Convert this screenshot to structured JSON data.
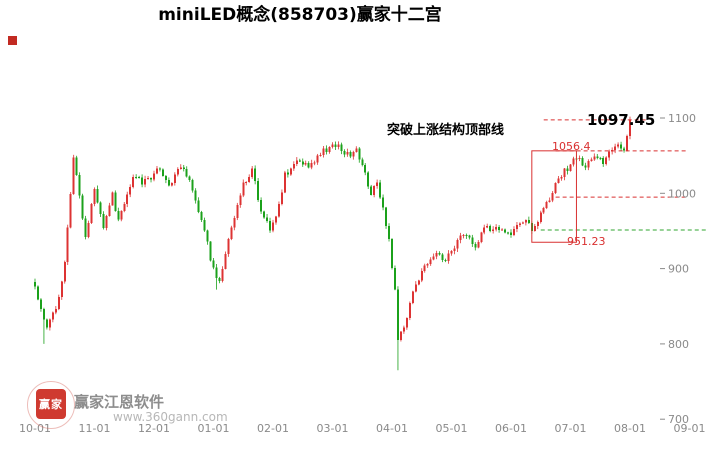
{
  "labels": {
    "breakout": "突破上涨结构顶部线",
    "latest_price": "1097.45",
    "upper_line": "1056.4",
    "lower_line": "951.23"
  },
  "watermark": {
    "logo_text": "赢家",
    "name": "赢家江恩软件",
    "url": "www.360gann.com"
  },
  "chart_data": {
    "type": "candlestick",
    "title": "miniLED概念(858703)赢家十二宫",
    "x_labels": [
      "10-01",
      "11-01",
      "12-01",
      "01-01",
      "02-01",
      "03-01",
      "04-01",
      "05-01",
      "06-01",
      "07-01",
      "08-01",
      "09-01"
    ],
    "y_ticks": [
      1100,
      1000,
      900,
      800,
      700
    ],
    "ylim": [
      700,
      1100
    ],
    "days_per_month": 20,
    "total_days": 228,
    "up_color": "#dd3333",
    "down_color": "#1ba11b",
    "axis_color": "#8a8a8a",
    "noise_amplitude": 9,
    "last_close": 1097.45,
    "anchors": [
      [
        0,
        872
      ],
      [
        2,
        850
      ],
      [
        4,
        818
      ],
      [
        6,
        840
      ],
      [
        8,
        860
      ],
      [
        10,
        905
      ],
      [
        11,
        950
      ],
      [
        13,
        1050
      ],
      [
        15,
        1000
      ],
      [
        17,
        940
      ],
      [
        20,
        1010
      ],
      [
        23,
        955
      ],
      [
        26,
        1000
      ],
      [
        28,
        962
      ],
      [
        31,
        1000
      ],
      [
        33,
        1025
      ],
      [
        36,
        1015
      ],
      [
        40,
        1024
      ],
      [
        42,
        1034
      ],
      [
        45,
        1010
      ],
      [
        49,
        1035
      ],
      [
        52,
        1020
      ],
      [
        54,
        990
      ],
      [
        57,
        950
      ],
      [
        60,
        898
      ],
      [
        62,
        885
      ],
      [
        64,
        918
      ],
      [
        67,
        970
      ],
      [
        70,
        1010
      ],
      [
        73,
        1034
      ],
      [
        76,
        975
      ],
      [
        79,
        955
      ],
      [
        81,
        965
      ],
      [
        84,
        1025
      ],
      [
        89,
        1046
      ],
      [
        92,
        1031
      ],
      [
        96,
        1053
      ],
      [
        99,
        1060
      ],
      [
        102,
        1063
      ],
      [
        106,
        1047
      ],
      [
        108,
        1058
      ],
      [
        111,
        1027
      ],
      [
        113,
        1000
      ],
      [
        115,
        1013
      ],
      [
        117,
        980
      ],
      [
        119,
        938
      ],
      [
        121,
        872
      ],
      [
        122,
        805
      ],
      [
        124,
        820
      ],
      [
        126,
        858
      ],
      [
        128,
        878
      ],
      [
        131,
        905
      ],
      [
        134,
        918
      ],
      [
        138,
        912
      ],
      [
        141,
        931
      ],
      [
        144,
        945
      ],
      [
        148,
        931
      ],
      [
        151,
        951
      ],
      [
        155,
        958
      ],
      [
        158,
        945
      ],
      [
        161,
        951
      ],
      [
        165,
        965
      ],
      [
        167,
        954
      ],
      [
        170,
        971
      ],
      [
        173,
        991
      ],
      [
        175,
        1011
      ],
      [
        177,
        1025
      ],
      [
        180,
        1038
      ],
      [
        182,
        1047
      ],
      [
        185,
        1036
      ],
      [
        188,
        1050
      ],
      [
        191,
        1043
      ],
      [
        193,
        1058
      ],
      [
        196,
        1063
      ],
      [
        198,
        1060
      ],
      [
        199,
        1075
      ],
      [
        200,
        1097.45
      ]
    ],
    "wick_overrides": [
      {
        "day": 3,
        "low": 800
      },
      {
        "day": 61,
        "low": 872
      },
      {
        "day": 122,
        "low": 765
      }
    ],
    "lines": [
      {
        "price": 1097.45,
        "d1": 171,
        "d2": 206,
        "color": "#d93030"
      },
      {
        "price": 1056.4,
        "d1": 175,
        "d2": 219,
        "color": "#d93030"
      },
      {
        "price": 995,
        "d1": 175,
        "d2": 219,
        "color": "#d93030"
      },
      {
        "price": 951.23,
        "d1": 170,
        "d2": 226,
        "color": "#2fa52f"
      }
    ],
    "box": {
      "d1": 167,
      "d2": 182,
      "p1": 935,
      "p2": 1056.4,
      "color": "#d93030"
    },
    "annotation": "突破上涨结构顶部线"
  }
}
